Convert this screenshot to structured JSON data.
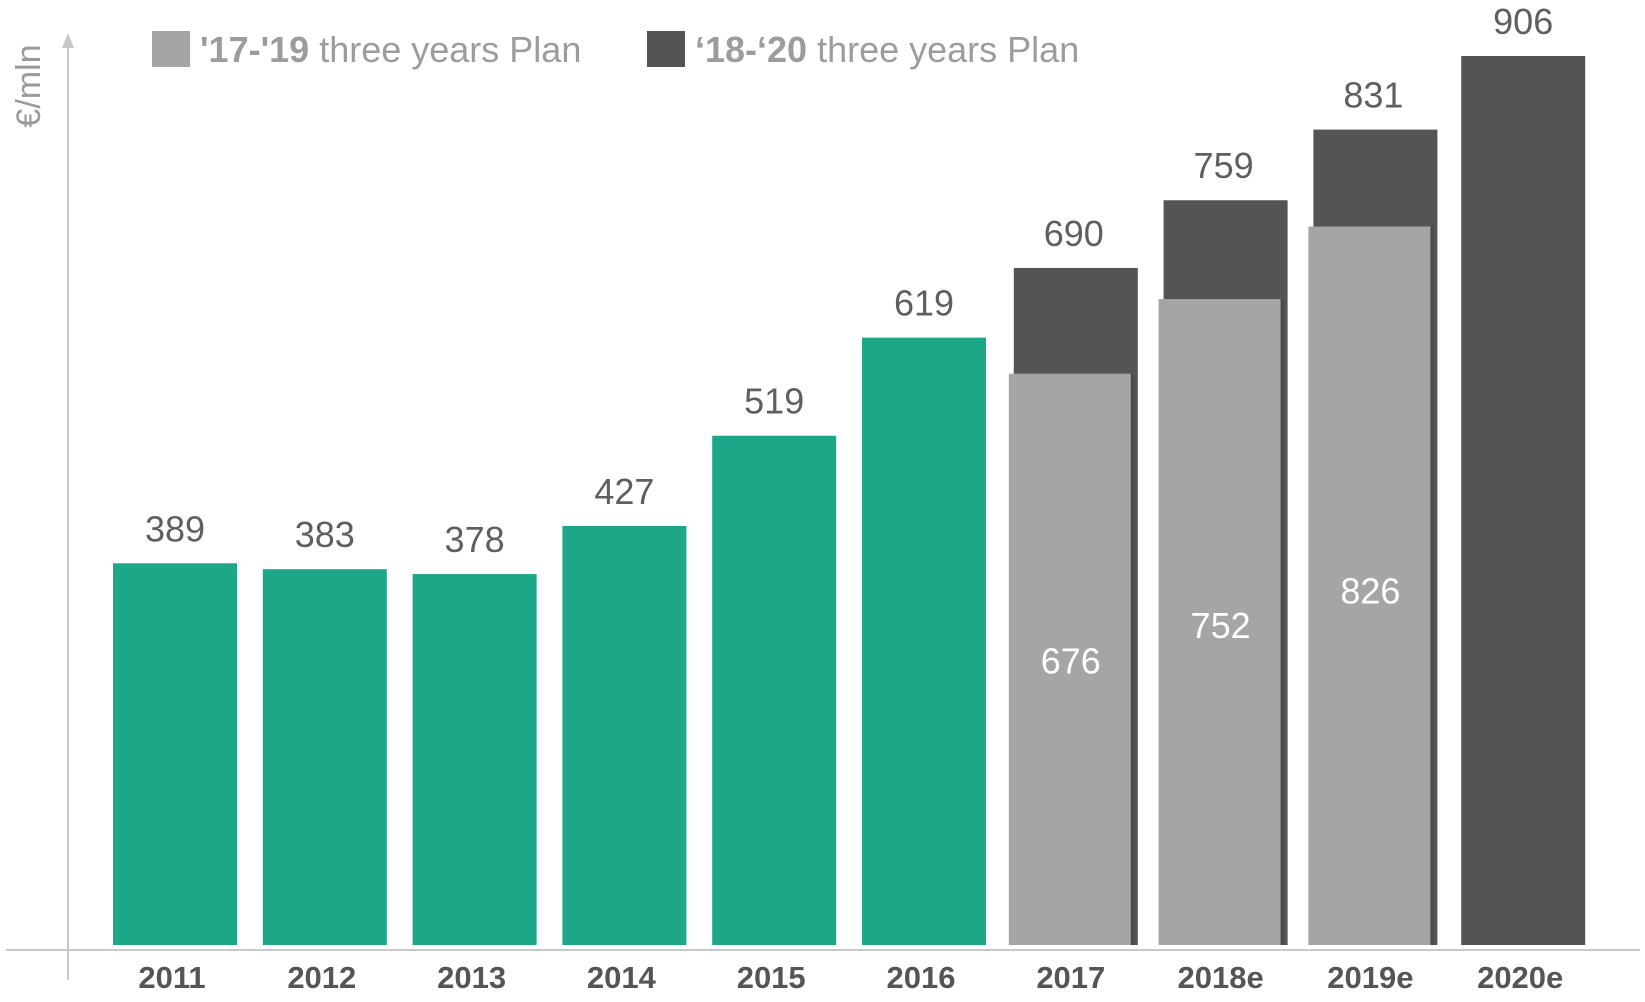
{
  "chart_data": {
    "type": "bar",
    "title": "",
    "xlabel": "",
    "ylabel": "€/mln",
    "ylim": [
      0,
      950
    ],
    "grid": false,
    "legend_position": "top",
    "categories": [
      "2011",
      "2012",
      "2013",
      "2014",
      "2015",
      "2016",
      "2017",
      "2018e",
      "2019e",
      "2020e"
    ],
    "actual": {
      "color": "#1ba788",
      "values": [
        389,
        383,
        378,
        427,
        519,
        619,
        null,
        null,
        null,
        null
      ]
    },
    "series": [
      {
        "name": "'17-'19 three years Plan",
        "color": "#a5a5a5",
        "values": [
          null,
          null,
          null,
          null,
          null,
          null,
          676,
          752,
          826,
          null
        ]
      },
      {
        "name": "‘18-‘20 three years Plan",
        "color": "#545456",
        "values": [
          null,
          null,
          null,
          null,
          null,
          null,
          690,
          759,
          831,
          906
        ]
      }
    ],
    "legend": [
      {
        "bold_part": "'17-'19",
        "rest": " three years Plan",
        "color": "#a5a5a5"
      },
      {
        "bold_part": "‘18-‘20",
        "rest": " three years Plan",
        "color": "#545456"
      }
    ]
  }
}
